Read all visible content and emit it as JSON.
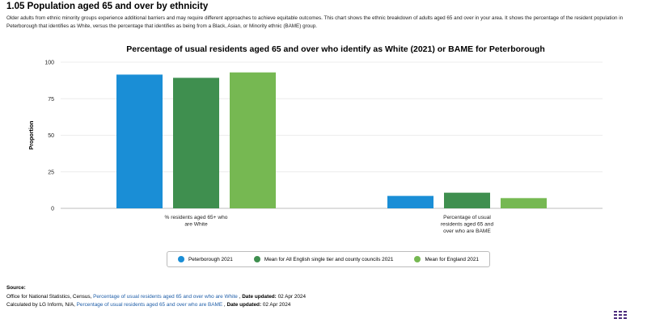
{
  "heading": "1.05 Population aged 65 and over by ethnicity",
  "description": "Older adults from ethnic minority groups experience additional barriers and may require different approaches to achieve equitable outcomes. This chart shows the ethnic breakdown of adults aged 65 and over in your area. It shows the percentage of the resident population in Peterborough that identifies as White, versus the percentage that identifies as being from a Black, Asian, or Minority ethnic (BAME) group.",
  "chart_data": {
    "type": "bar",
    "title": "Percentage of usual residents aged 65 and over who identify as White (2021) or BAME for Peterborough",
    "ylabel": "Proportion",
    "xlabel": "",
    "ylim": [
      0,
      100
    ],
    "yticks": [
      0,
      25,
      50,
      75,
      100
    ],
    "categories": [
      [
        "% residents aged 65+ who",
        "are White"
      ],
      [
        "Percentage of usual",
        "residents aged 65 and",
        "over who are BAME"
      ]
    ],
    "series": [
      {
        "name": "Peterborough 2021",
        "color": "#1a8ed6",
        "values": [
          91.5,
          8.5
        ]
      },
      {
        "name": "Mean for All English single tier and county councils 2021",
        "color": "#3f8f4f",
        "values": [
          89.3,
          10.7
        ]
      },
      {
        "name": "Mean for England 2021",
        "color": "#76b852",
        "values": [
          93.0,
          7.0
        ]
      }
    ],
    "legend_position": "bottom"
  },
  "source": {
    "title": "Source:",
    "line1": {
      "prefix": "Office for National Statistics, Census, ",
      "link": "Percentage of usual residents aged 65 and over who are White",
      "sep": " , ",
      "updated_label": "Date updated:",
      "updated_value": " 02 Apr 2024"
    },
    "line2": {
      "prefix": "Calculated by LG Inform, N/A, ",
      "link": "Percentage of usual residents aged 65 and over who are BAME",
      "sep": " , ",
      "updated_label": "Date updated:",
      "updated_value": " 02 Apr 2024"
    }
  }
}
